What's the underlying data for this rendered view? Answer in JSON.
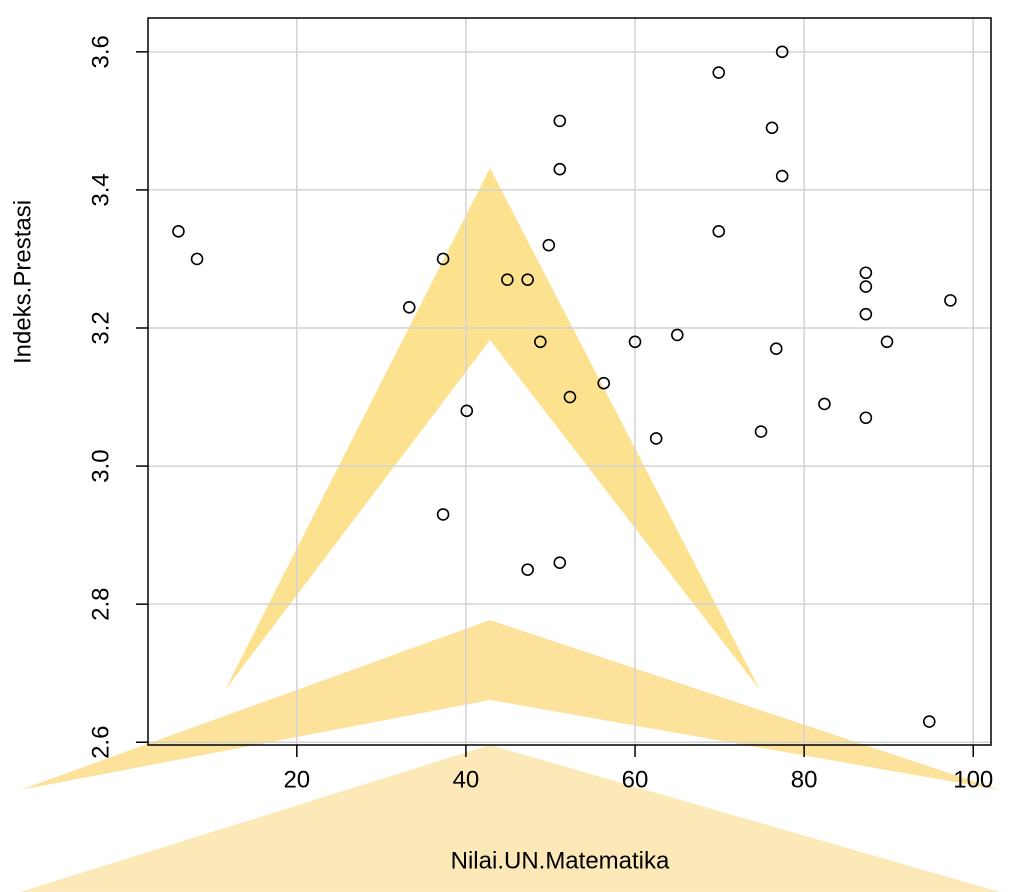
{
  "chart_data": {
    "type": "scatter",
    "x_label": "Nilai.UN.Matematika",
    "y_label": "Indeks.Prestasi",
    "x": [
      6.0,
      8.2,
      33.3,
      37.3,
      37.3,
      40.1,
      44.9,
      47.3,
      47.3,
      48.8,
      49.8,
      51.1,
      51.1,
      51.1,
      52.3,
      56.3,
      60.0,
      62.5,
      65.0,
      69.9,
      69.9,
      74.9,
      76.2,
      76.7,
      77.4,
      77.4,
      82.4,
      87.3,
      87.3,
      87.3,
      87.3,
      89.8,
      94.8,
      97.3
    ],
    "values": [
      3.34,
      3.3,
      3.23,
      3.3,
      2.93,
      3.08,
      3.27,
      3.27,
      2.85,
      3.18,
      3.32,
      3.5,
      3.43,
      2.86,
      3.1,
      3.12,
      3.18,
      3.04,
      3.19,
      3.34,
      3.57,
      3.05,
      3.49,
      3.17,
      3.6,
      3.42,
      3.09,
      3.28,
      3.26,
      3.22,
      3.07,
      3.18,
      2.63,
      3.24
    ],
    "color": "#000000",
    "xlim": [
      2.4,
      102.1
    ],
    "ylim": [
      2.596,
      3.649
    ],
    "xticks": [
      20,
      40,
      60,
      80,
      100
    ],
    "yticks": [
      2.6,
      2.8,
      {
        "value": 3,
        "label": "3.0"
      },
      3.2,
      3.4,
      3.6
    ],
    "grid": true
  }
}
